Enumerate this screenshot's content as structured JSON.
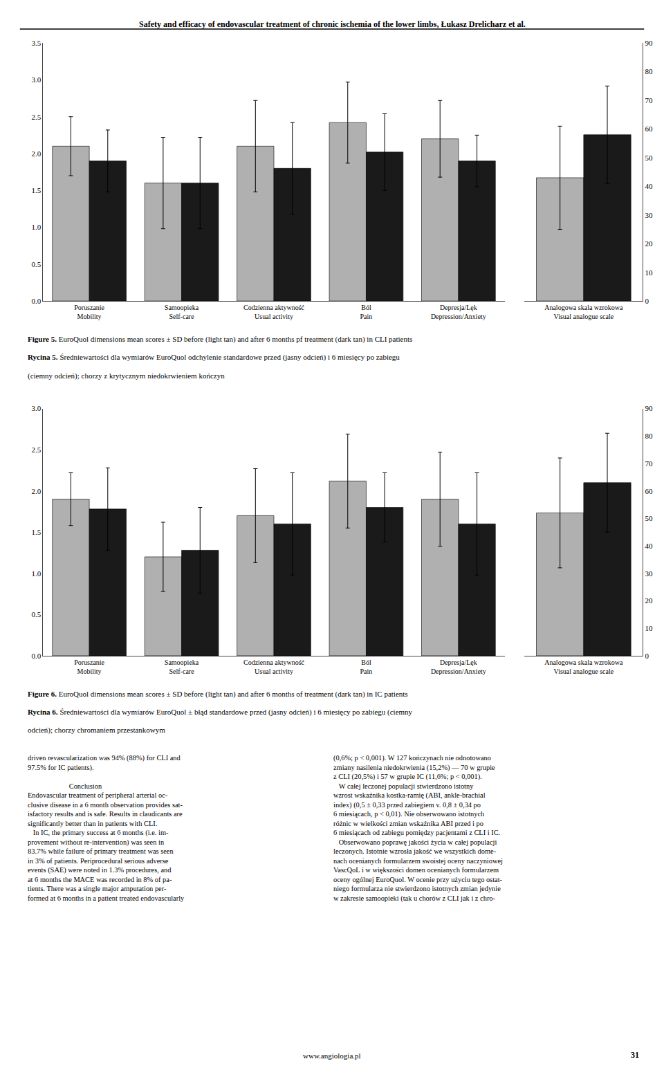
{
  "title": "Safety and efficacy of endovascular treatment of chronic ischemia of the lower limbs, Łukasz Drelicharz et al.",
  "annotations": [
    "driven revascularization was 94% (88%) for CLI and\n97.5% for IC patients).\n\n                       Conclusion\nEndovascular treatment of peripheral arterial oc-\nclusive disease in a 6 month observation provides sat-\nisfactory results and is safe. Results in claudicants are\nsignificantly better than in patients with CLI.\n   In IC, the primary success at 6 months (i.e. im-\nprovement without re-intervention) was seen in\n83.7% while failure of primary treatment was seen\nin 3% of patients. Periprocedural serious adverse\nevents (SAE) were noted in 1.3% procedures, and\nat 6 months the MACE was recorded in 8% of pa-\ntients. There was a single major amputation per-\nformed at 6 months in a patient treated endovascularly",
    "(0,6%; p < 0,001). W 127 kończynach nie odnotowano\nzmiany nasilenia niedokrwienia (15,2%) — 70 w grupie\nz CLI (20,5%) i 57 w grupie IC (11,6%; p < 0,001).\n   W całej leczonej populacji stwierdzono istotny\nwzrost wskaźnika kostka-ramię (ABI, ankle-brachial\nindex) (0,5 ± 0,33 przed zabiegiem v. 0,8 ± 0,34 po\n6 miesiącach, p < 0,01). Nie obserwowano istotnych\nróżnic w wielkości zmian wskaźnika ABI przed i po\n6 miesiącach od zabiegu pomiędzy pacjentami z CLI i IC.\n   Obserwowano poprawę jakości życia w całej populacji\nleczonych. Istotnie wzrosła jakość we wszystkich dome-\nnach ocenianych formularzem swoistej oceny naczyniowej\nVascQoL i w większości domen ocenianych formularzem\noceny ogólnej EuroQuol. W ocenie przy użyciu tego ostat-\nniego formularza nie stwierdzono istotnych zmian jedynie\nw zakresie samoopieki (tak u chorów z CLI jak i z chro-",
    "www.angiologia.pl",
    "31"
  ],
  "chart_data": [
    {
      "type": "bar",
      "categories": [
        "Poruszanie\nMobility",
        "Samoopieka\nSelf-care",
        "Codzienna aktywność\nUsual activity",
        "Ból\nPain",
        "Depresja/Lęk\nDepression/Anxiety"
      ],
      "series": [
        {
          "color": "#b0b0b0",
          "values": [
            2.1,
            1.6,
            2.1,
            2.42,
            2.2
          ],
          "errors": [
            0.4,
            0.62,
            0.62,
            0.55,
            0.52
          ]
        },
        {
          "color": "#1a1a1a",
          "values": [
            1.9,
            1.6,
            1.8,
            2.02,
            1.9
          ],
          "errors": [
            0.42,
            0.62,
            0.62,
            0.52,
            0.35
          ]
        }
      ],
      "ylim": [
        0,
        3.5
      ],
      "yticks": [
        {
          "value": 0,
          "label": "0.0"
        },
        0.5,
        {
          "value": 1.0,
          "label": "1.0"
        },
        1.5,
        {
          "value": 2.0,
          "label": "2.0"
        },
        2.5,
        {
          "value": 3.0,
          "label": "3.0"
        },
        3.5
      ],
      "grid": false,
      "annotations": [
        "Figure 5. EuroQuol dimensions mean scores ± SD before (light tan) and after 6 months pf treatment (dark tan) in CLI patients",
        "Rycina 5. Średniewartości dla wymiarów EuroQuol odchylenie standardowe przed (jasny odcień) i 6 miesięcy po zabiegu",
        "(ciemny odcień); chorzy z krytycznym niedokrwieniem kończyn"
      ]
    },
    {
      "type": "bar",
      "categories": [
        "Analogowa skala wzrokowa\nVisual analogue scale"
      ],
      "series": [
        {
          "color": "#b0b0b0",
          "values": [
            43.0
          ],
          "errors": [
            18.0
          ]
        },
        {
          "color": "#1a1a1a",
          "values": [
            58.0
          ],
          "errors": [
            17.0
          ]
        }
      ],
      "ylim": [
        0,
        90
      ],
      "yticks": [
        0,
        10,
        20,
        30,
        40,
        50,
        60,
        70,
        80,
        90
      ],
      "grid": false
    },
    {
      "type": "bar",
      "categories": [
        "Poruszanie\nMobility",
        "Samoopieka\nSelf-care",
        "Codzienna aktywność\nUsual activity",
        "Ból\nPain",
        "Depresja/Lęk\nDepression/Anxiety"
      ],
      "series": [
        {
          "color": "#b0b0b0",
          "values": [
            1.9,
            1.2,
            1.7,
            2.12,
            1.9
          ],
          "errors": [
            0.32,
            0.42,
            0.57,
            0.57,
            0.57
          ]
        },
        {
          "color": "#1a1a1a",
          "values": [
            1.78,
            1.28,
            1.6,
            1.8,
            1.6
          ],
          "errors": [
            0.5,
            0.52,
            0.62,
            0.42,
            0.62
          ]
        }
      ],
      "ylim": [
        0,
        3.0
      ],
      "yticks": [
        {
          "value": 0,
          "label": "0.0"
        },
        0.5,
        {
          "value": 1.0,
          "label": "1.0"
        },
        1.5,
        {
          "value": 2.0,
          "label": "2.0"
        },
        2.5,
        {
          "value": 3.0,
          "label": "3.0"
        }
      ],
      "grid": false,
      "annotations": [
        "Figure 6. EuroQuol dimensions mean scores ± SD before (light tan) and after 6 months of treatment (dark tan) in IC patients",
        "Rycina 6. Średniewartości dla wymiarów EuroQuol ± błąd standardowe przed (jasny odcień) i 6 miesięcy po zabiegu (ciemny",
        "odcień); chorzy chromaniem przestankowym"
      ]
    },
    {
      "type": "bar",
      "categories": [
        "Analogowa skala wzrokowa\nVisual analogue scale"
      ],
      "series": [
        {
          "color": "#b0b0b0",
          "values": [
            52.0
          ],
          "errors": [
            20.0
          ]
        },
        {
          "color": "#1a1a1a",
          "values": [
            63.0
          ],
          "errors": [
            18.0
          ]
        }
      ],
      "ylim": [
        0,
        90
      ],
      "yticks": [
        0,
        10,
        20,
        30,
        40,
        50,
        60,
        70,
        80,
        90
      ],
      "grid": false
    }
  ]
}
